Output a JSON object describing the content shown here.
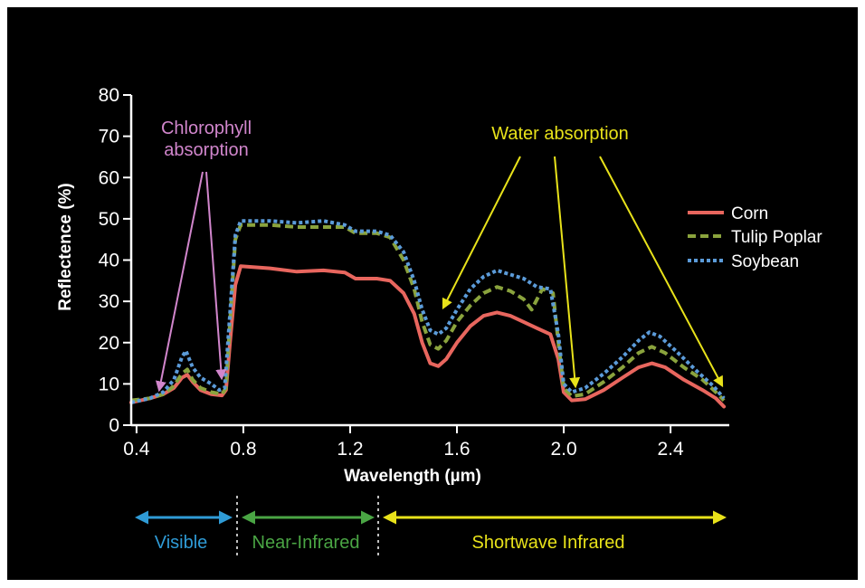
{
  "chart_data": {
    "type": "line",
    "xlabel": "Wavelength (µm)",
    "ylabel": "Reflectence (%)",
    "xlim": [
      0.38,
      2.62
    ],
    "ylim": [
      0,
      80
    ],
    "x_ticks": [
      0.4,
      0.8,
      1.2,
      1.6,
      2.0,
      2.4
    ],
    "x_tick_labels": [
      "0.4",
      "0.8",
      "1.2",
      "1.6",
      "2.0",
      "2.4"
    ],
    "y_ticks": [
      0,
      10,
      20,
      30,
      40,
      50,
      60,
      70,
      80
    ],
    "y_tick_labels": [
      "0",
      "10",
      "20",
      "30",
      "40",
      "50",
      "60",
      "70",
      "80"
    ],
    "grid": false,
    "legend_position": "right",
    "series": [
      {
        "name": "Corn",
        "color": "#e8665e",
        "style": "solid",
        "points": [
          [
            0.38,
            5.5
          ],
          [
            0.45,
            6.5
          ],
          [
            0.5,
            7.5
          ],
          [
            0.54,
            9
          ],
          [
            0.57,
            11.5
          ],
          [
            0.59,
            12.2
          ],
          [
            0.61,
            10.5
          ],
          [
            0.64,
            8.5
          ],
          [
            0.68,
            7.5
          ],
          [
            0.72,
            7.2
          ],
          [
            0.735,
            8.5
          ],
          [
            0.75,
            20
          ],
          [
            0.77,
            34
          ],
          [
            0.79,
            38.5
          ],
          [
            0.9,
            38
          ],
          [
            1.0,
            37.2
          ],
          [
            1.1,
            37.5
          ],
          [
            1.18,
            37
          ],
          [
            1.22,
            35.5
          ],
          [
            1.3,
            35.5
          ],
          [
            1.35,
            35
          ],
          [
            1.4,
            32
          ],
          [
            1.44,
            27
          ],
          [
            1.47,
            20
          ],
          [
            1.5,
            15
          ],
          [
            1.53,
            14.3
          ],
          [
            1.56,
            16
          ],
          [
            1.6,
            20
          ],
          [
            1.65,
            24
          ],
          [
            1.7,
            26.5
          ],
          [
            1.75,
            27.3
          ],
          [
            1.8,
            26.5
          ],
          [
            1.85,
            25
          ],
          [
            1.9,
            23.5
          ],
          [
            1.95,
            22
          ],
          [
            1.98,
            16
          ],
          [
            2.0,
            8
          ],
          [
            2.03,
            6
          ],
          [
            2.08,
            6.3
          ],
          [
            2.15,
            8.5
          ],
          [
            2.22,
            11.5
          ],
          [
            2.28,
            14
          ],
          [
            2.33,
            15
          ],
          [
            2.38,
            14
          ],
          [
            2.45,
            11
          ],
          [
            2.52,
            8.5
          ],
          [
            2.57,
            6.5
          ],
          [
            2.6,
            4.5
          ]
        ]
      },
      {
        "name": "Tulip Poplar",
        "color": "#8aa33d",
        "style": "dashed",
        "points": [
          [
            0.38,
            6
          ],
          [
            0.45,
            6.5
          ],
          [
            0.5,
            7.5
          ],
          [
            0.54,
            9.5
          ],
          [
            0.57,
            12.5
          ],
          [
            0.59,
            13.5
          ],
          [
            0.61,
            11
          ],
          [
            0.64,
            9
          ],
          [
            0.68,
            8
          ],
          [
            0.72,
            7.5
          ],
          [
            0.735,
            9
          ],
          [
            0.75,
            25
          ],
          [
            0.77,
            45
          ],
          [
            0.79,
            48.5
          ],
          [
            0.9,
            48.5
          ],
          [
            1.0,
            48
          ],
          [
            1.1,
            48
          ],
          [
            1.18,
            48
          ],
          [
            1.22,
            46.5
          ],
          [
            1.3,
            46.5
          ],
          [
            1.35,
            45.5
          ],
          [
            1.4,
            40
          ],
          [
            1.44,
            33
          ],
          [
            1.47,
            25
          ],
          [
            1.5,
            19.5
          ],
          [
            1.53,
            18.5
          ],
          [
            1.56,
            20.5
          ],
          [
            1.6,
            25
          ],
          [
            1.65,
            29
          ],
          [
            1.7,
            32
          ],
          [
            1.75,
            33.5
          ],
          [
            1.8,
            32.5
          ],
          [
            1.85,
            30.5
          ],
          [
            1.88,
            28
          ],
          [
            1.92,
            33
          ],
          [
            1.96,
            32
          ],
          [
            1.98,
            20
          ],
          [
            2.0,
            9
          ],
          [
            2.03,
            7
          ],
          [
            2.08,
            7.5
          ],
          [
            2.15,
            10.5
          ],
          [
            2.22,
            14
          ],
          [
            2.28,
            17.5
          ],
          [
            2.33,
            19
          ],
          [
            2.38,
            17.5
          ],
          [
            2.45,
            14
          ],
          [
            2.52,
            11
          ],
          [
            2.57,
            8
          ],
          [
            2.6,
            6
          ]
        ]
      },
      {
        "name": "Soybean",
        "color": "#5b9bd9",
        "style": "dotted",
        "points": [
          [
            0.38,
            5.5
          ],
          [
            0.45,
            6.5
          ],
          [
            0.5,
            8
          ],
          [
            0.54,
            11
          ],
          [
            0.57,
            16.5
          ],
          [
            0.585,
            18
          ],
          [
            0.61,
            14
          ],
          [
            0.64,
            11.5
          ],
          [
            0.68,
            10
          ],
          [
            0.71,
            8.5
          ],
          [
            0.73,
            9
          ],
          [
            0.75,
            27
          ],
          [
            0.77,
            46
          ],
          [
            0.79,
            49.5
          ],
          [
            0.9,
            49.5
          ],
          [
            1.0,
            49
          ],
          [
            1.1,
            49.5
          ],
          [
            1.18,
            48.5
          ],
          [
            1.22,
            47
          ],
          [
            1.3,
            47
          ],
          [
            1.35,
            46
          ],
          [
            1.4,
            42
          ],
          [
            1.44,
            35
          ],
          [
            1.47,
            28
          ],
          [
            1.5,
            23
          ],
          [
            1.53,
            22
          ],
          [
            1.56,
            23.5
          ],
          [
            1.6,
            28
          ],
          [
            1.65,
            33
          ],
          [
            1.7,
            36
          ],
          [
            1.75,
            37.5
          ],
          [
            1.8,
            36.5
          ],
          [
            1.85,
            35.5
          ],
          [
            1.9,
            33.5
          ],
          [
            1.95,
            33
          ],
          [
            1.98,
            22
          ],
          [
            2.0,
            10
          ],
          [
            2.03,
            8
          ],
          [
            2.08,
            9
          ],
          [
            2.15,
            12.5
          ],
          [
            2.22,
            16.5
          ],
          [
            2.28,
            20.5
          ],
          [
            2.32,
            22.5
          ],
          [
            2.36,
            21.5
          ],
          [
            2.42,
            18
          ],
          [
            2.5,
            13
          ],
          [
            2.56,
            9.5
          ],
          [
            2.6,
            6.5
          ]
        ]
      }
    ],
    "annotations": [
      {
        "id": "chlorophyll",
        "label_lines": [
          "Chlorophyll",
          "absorption"
        ],
        "color": "#d186cc"
      },
      {
        "id": "water",
        "label": "Water absorption",
        "color": "#e8e21a"
      }
    ],
    "regions": [
      {
        "label": "Visible",
        "color": "#2f9bd6"
      },
      {
        "label": "Near-Infrared",
        "color": "#4aa544"
      },
      {
        "label": "Shortwave Infrared",
        "color": "#e8e21a"
      }
    ]
  }
}
